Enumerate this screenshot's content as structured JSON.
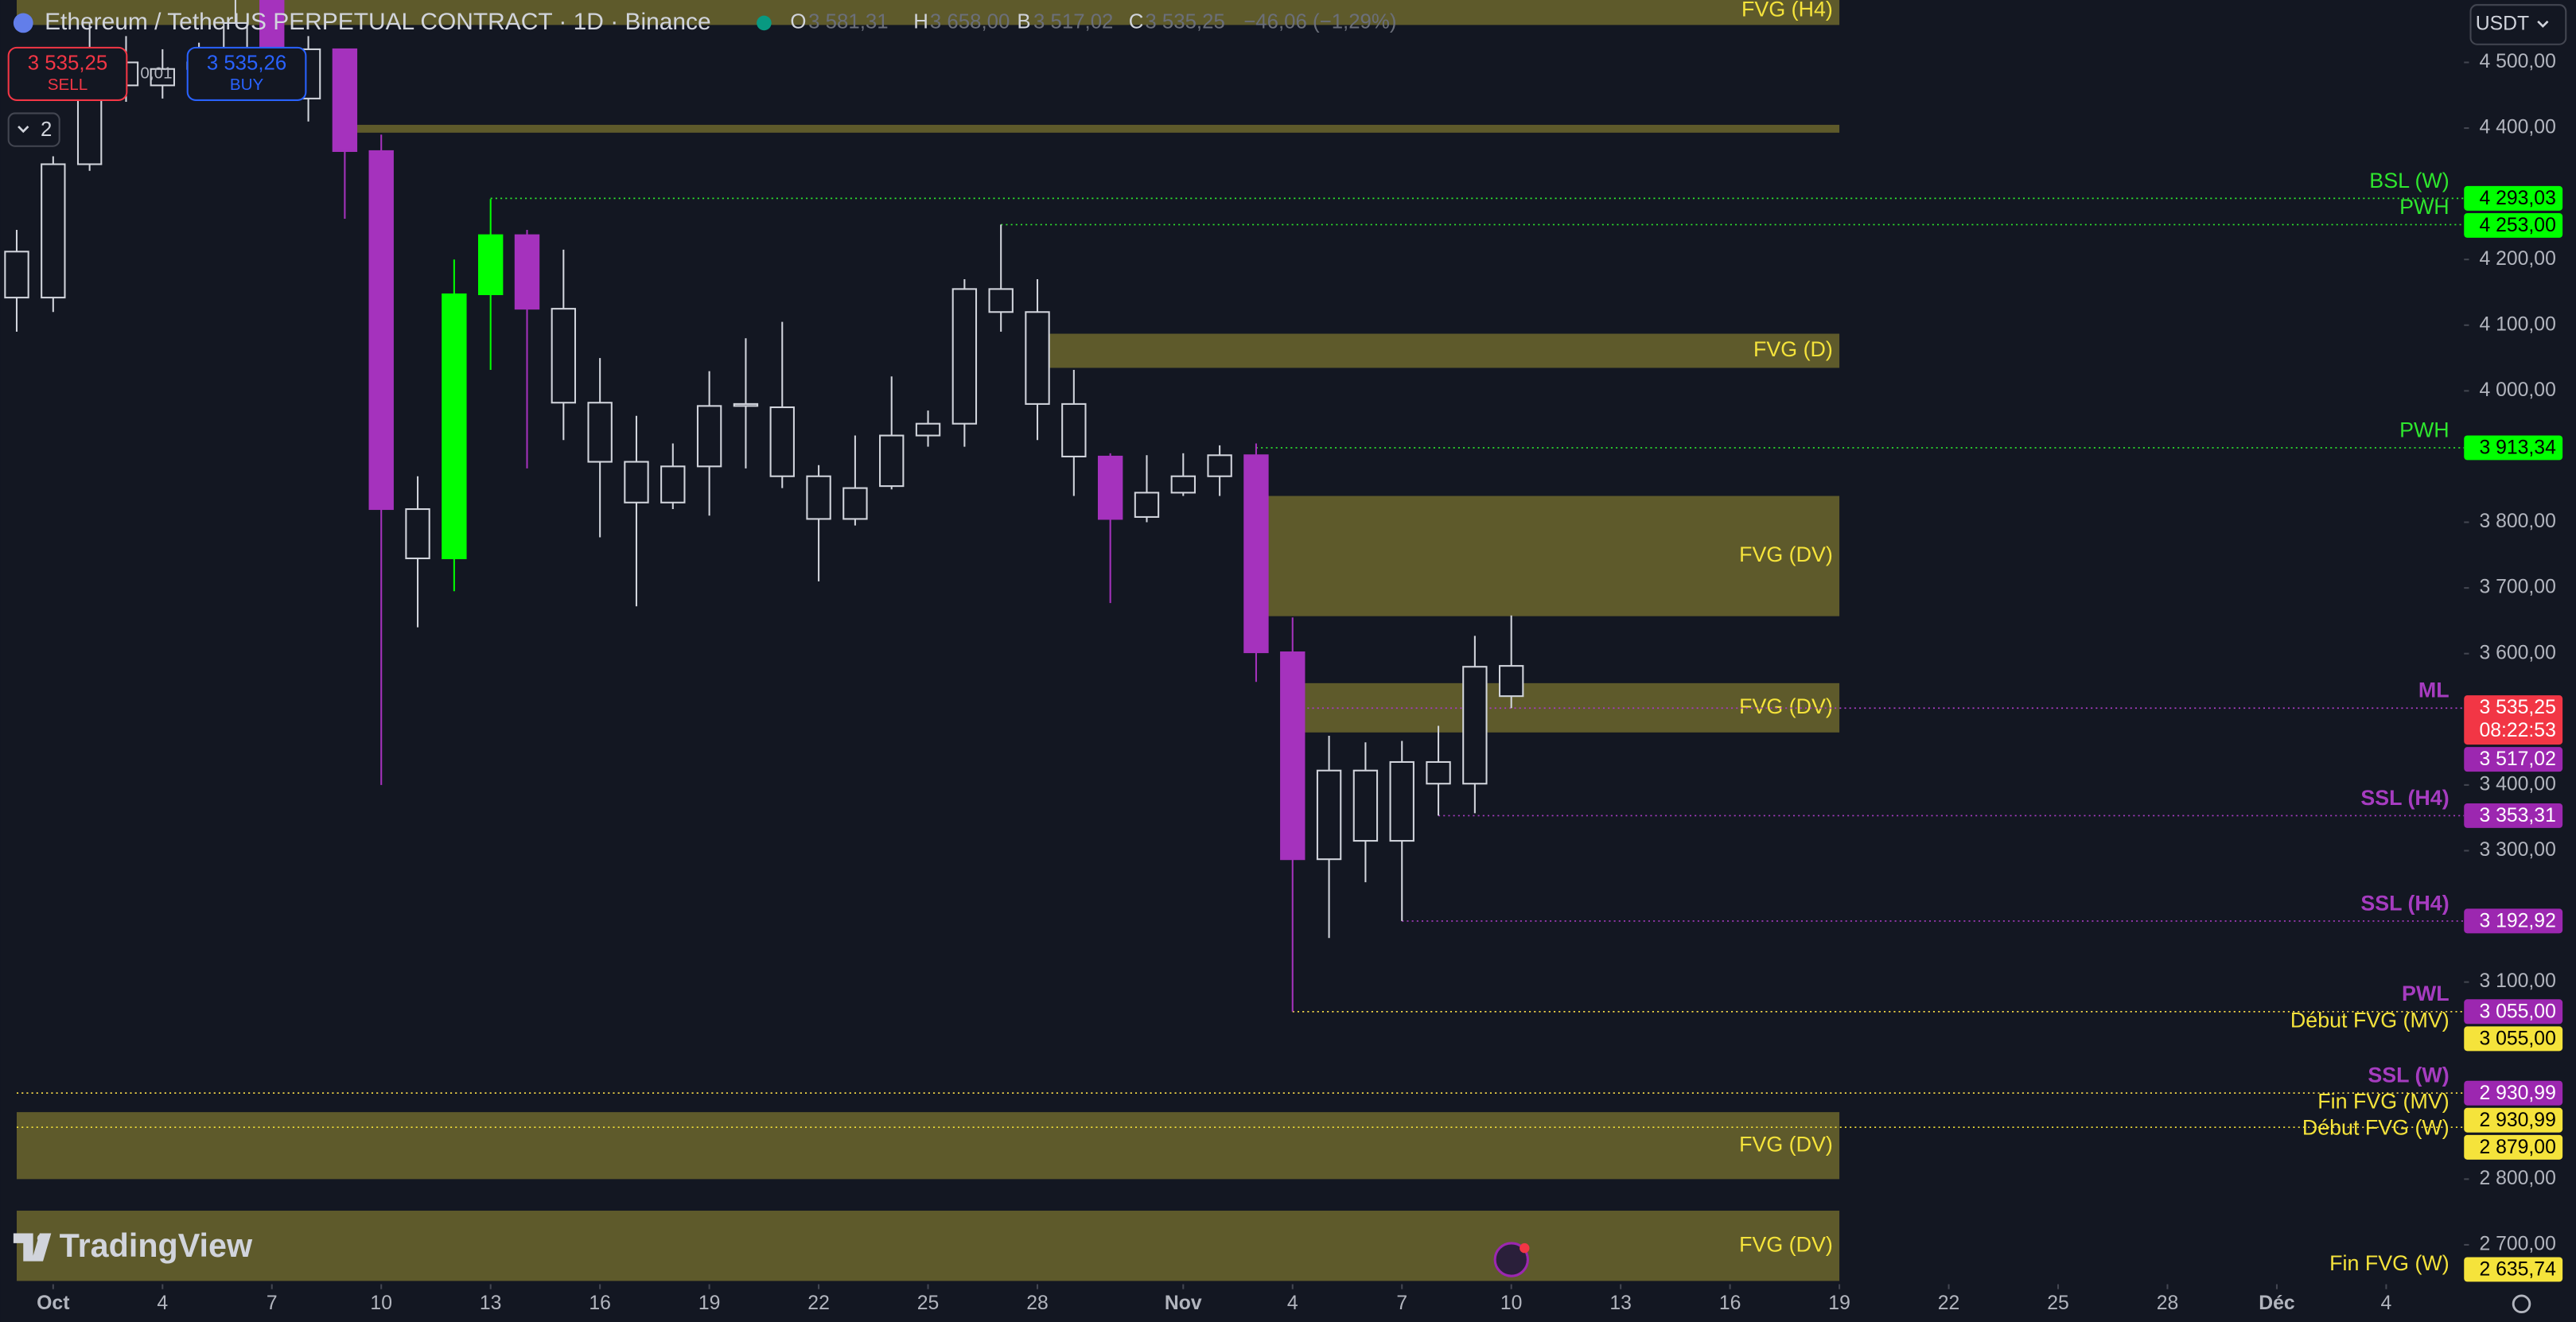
{
  "header": {
    "symbol": "Ethereum / TetherUS PERPETUAL CONTRACT · 1D · Binance",
    "o_label": "O",
    "o": "3 581,31",
    "h_label": "H",
    "h": "3 658,00",
    "l_label": "B",
    "l": "3 517,02",
    "c_label": "C",
    "c": "3 535,25",
    "change": "−46,06 (−1,29%)"
  },
  "trade": {
    "sell_price": "3 535,25",
    "sell": "SELL",
    "qty": "0,01",
    "buy_price": "3 535,26",
    "buy": "BUY",
    "indicators": "2"
  },
  "currency": "USDT",
  "logo": "TradingView",
  "chart_data": {
    "type": "candlestick",
    "x": [
      "09-30",
      "10-01",
      "10-02",
      "10-03",
      "10-04",
      "10-05",
      "10-06",
      "10-07",
      "10-08",
      "10-09",
      "10-10",
      "10-11",
      "10-12",
      "10-13",
      "10-14",
      "10-15",
      "10-16",
      "10-17",
      "10-18",
      "10-19",
      "10-20",
      "10-21",
      "10-22",
      "10-23",
      "10-24",
      "10-25",
      "10-26",
      "10-27",
      "10-28",
      "10-29",
      "10-30",
      "10-31",
      "11-01",
      "11-02",
      "11-03",
      "11-04",
      "11-05",
      "11-06",
      "11-07",
      "11-08",
      "11-09",
      "11-10"
    ],
    "open": [
      4142,
      4142,
      4345,
      4500,
      4465,
      4490,
      4500,
      4650,
      4445,
      4520,
      4365,
      3820,
      3745,
      4147,
      4237,
      4125,
      3982,
      3892,
      3830,
      3885,
      3977,
      3975,
      3870,
      3805,
      3855,
      3932,
      3950,
      4155,
      4120,
      3980,
      3900,
      3808,
      3845,
      3870,
      3902,
      3602,
      3287,
      3422,
      3315,
      3435,
      3402,
      3581.31
    ],
    "high": [
      4245,
      4357,
      4560,
      4540,
      4520,
      4530,
      4600,
      4700,
      4540,
      4520,
      4390,
      3870,
      4200,
      4292,
      4245,
      4215,
      4050,
      3962,
      3920,
      4030,
      4080,
      4105,
      3887,
      3932,
      4022,
      3970,
      4170,
      4253,
      4170,
      4032,
      3905,
      3902,
      3905,
      3917,
      3920,
      3655,
      3475,
      3465,
      3467,
      3490,
      3627,
      3658
    ],
    "low": [
      4090,
      4120,
      4335,
      4440,
      4445,
      4475,
      4480,
      4490,
      4410,
      4262,
      3400,
      3640,
      3695,
      4032,
      3882,
      3925,
      3777,
      3672,
      3820,
      3810,
      3882,
      3852,
      3710,
      3795,
      3850,
      3915,
      3915,
      4090,
      3925,
      3840,
      3677,
      3800,
      3840,
      3840,
      3557,
      3055,
      3167,
      3252,
      3192.92,
      3353.31,
      3357,
      3517.02
    ],
    "close": [
      4212,
      4345,
      4500,
      4465,
      4490,
      4500,
      4560,
      4520,
      4520,
      4365,
      3820,
      3745,
      4147,
      4237,
      4125,
      3982,
      3892,
      3830,
      3885,
      3977,
      3980,
      3870,
      3805,
      3852,
      3932,
      3950,
      4155,
      4120,
      3980,
      3900,
      3805,
      3845,
      3870,
      3902,
      3602,
      3287,
      3422,
      3315,
      3435,
      3402,
      3580,
      3535.25
    ],
    "colors": [
      "#d1d4dc",
      "#d1d4dc",
      "#d1d4dc",
      "#d1d4dc",
      "#d1d4dc",
      "#d1d4dc",
      "#d1d4dc",
      "#a532bd",
      "#d1d4dc",
      "#a532bd",
      "#a532bd",
      "#d1d4dc",
      "#00ff00",
      "#00ff00",
      "#a532bd",
      "#d1d4dc",
      "#d1d4dc",
      "#d1d4dc",
      "#d1d4dc",
      "#d1d4dc",
      "#d1d4dc",
      "#d1d4dc",
      "#d1d4dc",
      "#d1d4dc",
      "#d1d4dc",
      "#d1d4dc",
      "#d1d4dc",
      "#d1d4dc",
      "#d1d4dc",
      "#d1d4dc",
      "#a532bd",
      "#d1d4dc",
      "#d1d4dc",
      "#d1d4dc",
      "#a532bd",
      "#a532bd",
      "#d1d4dc",
      "#d1d4dc",
      "#d1d4dc",
      "#d1d4dc",
      "#d1d4dc",
      "#d1d4dc"
    ],
    "hollow_color": "#d1d4dc",
    "xlim": [
      "09-30",
      "12-06"
    ],
    "ylim": [
      2640,
      4595
    ],
    "yticks": [
      {
        "value": 4500,
        "label": "4 500,00"
      },
      {
        "value": 4400,
        "label": "4 400,00"
      },
      {
        "value": 4200,
        "label": "4 200,00"
      },
      {
        "value": 4100,
        "label": "4 100,00"
      },
      {
        "value": 4000,
        "label": "4 000,00"
      },
      {
        "value": 3800,
        "label": "3 800,00"
      },
      {
        "value": 3700,
        "label": "3 700,00"
      },
      {
        "value": 3600,
        "label": "3 600,00"
      },
      {
        "value": 3400,
        "label": "3 400,00"
      },
      {
        "value": 3300,
        "label": "3 300,00"
      },
      {
        "value": 3100,
        "label": "3 100,00"
      },
      {
        "value": 2800,
        "label": "2 800,00"
      },
      {
        "value": 2700,
        "label": "2 700,00"
      }
    ],
    "xticks": [
      {
        "value": "10-01",
        "label": "Oct"
      },
      {
        "value": "10-04",
        "label": "4"
      },
      {
        "value": "10-07",
        "label": "7"
      },
      {
        "value": "10-10",
        "label": "10"
      },
      {
        "value": "10-13",
        "label": "13"
      },
      {
        "value": "10-16",
        "label": "16"
      },
      {
        "value": "10-19",
        "label": "19"
      },
      {
        "value": "10-22",
        "label": "22"
      },
      {
        "value": "10-25",
        "label": "25"
      },
      {
        "value": "10-28",
        "label": "28"
      },
      {
        "value": "11-01",
        "label": "Nov"
      },
      {
        "value": "11-04",
        "label": "4"
      },
      {
        "value": "11-07",
        "label": "7"
      },
      {
        "value": "11-10",
        "label": "10"
      },
      {
        "value": "11-13",
        "label": "13"
      },
      {
        "value": "11-16",
        "label": "16"
      },
      {
        "value": "11-19",
        "label": "19"
      },
      {
        "value": "11-22",
        "label": "22"
      },
      {
        "value": "11-25",
        "label": "25"
      },
      {
        "value": "11-28",
        "label": "28"
      },
      {
        "value": "12-01",
        "label": "Déc"
      },
      {
        "value": "12-04",
        "label": "4"
      }
    ],
    "grid": false,
    "zones": [
      {
        "label": "FVG (H4)",
        "top": 4600,
        "bottom": 4557,
        "start": "09-30",
        "end": "11-19"
      },
      {
        "top": 4405,
        "bottom": 4393,
        "start": "10-09",
        "end": "11-19"
      },
      {
        "label": "FVG (D)",
        "top": 4087,
        "bottom": 4035,
        "start": "10-28",
        "end": "11-19"
      },
      {
        "label": "FVG (DV)",
        "top": 3840,
        "bottom": 3657,
        "start": "11-03",
        "end": "11-19"
      },
      {
        "label": "FVG (DV)",
        "top": 3555,
        "bottom": 3480,
        "start": "11-04",
        "end": "11-19"
      },
      {
        "label": "FVG (DV)",
        "top": 2902,
        "bottom": 2800,
        "start": "09-30",
        "end": "11-19"
      },
      {
        "label": "FVG (DV)",
        "top": 2752,
        "bottom": 2645,
        "start": "09-30",
        "end": "11-19"
      }
    ],
    "zone_color": "#5e5a2b",
    "zone_text_color": "#f5e33b",
    "levels": [
      {
        "name": "BSL (W)",
        "price": 4293.03,
        "price_label": "4 293,03",
        "start": "10-13",
        "color": "#2ee62e",
        "tag_color": "#00ff00",
        "tag_text_color": "#000000"
      },
      {
        "name": "PWH",
        "price": 4253,
        "price_label": "4 253,00",
        "start": "10-27",
        "color": "#2ee62e",
        "tag_color": "#00ff00",
        "tag_text_color": "#000000"
      },
      {
        "name": "PWH",
        "price": 3913.34,
        "price_label": "3 913,34",
        "start": "11-03",
        "color": "#2ee62e",
        "tag_color": "#00ff00",
        "tag_text_color": "#000000"
      },
      {
        "name": "ML",
        "price": 3517.02,
        "price_label": "3 517,02",
        "start": "11-04",
        "color": "#a63cc0",
        "tag_color": "#9c27b0",
        "tag_text_color": "#ffffff"
      },
      {
        "name": "SSL (H4)",
        "price": 3353.31,
        "price_label": "3 353,31",
        "start": "11-08",
        "color": "#a63cc0",
        "tag_color": "#9c27b0",
        "tag_text_color": "#ffffff"
      },
      {
        "name": "SSL (H4)",
        "price": 3192.92,
        "price_label": "3 192,92",
        "start": "11-07",
        "color": "#a63cc0",
        "tag_color": "#9c27b0",
        "tag_text_color": "#ffffff"
      },
      {
        "name": "PWL",
        "price": 3055,
        "price_label": "3 055,00",
        "start": "11-04",
        "color": "#a63cc0",
        "tag_color": "#9c27b0",
        "tag_text_color": "#ffffff"
      },
      {
        "name": "Début FVG (MV)",
        "price": 3055,
        "price_label": "3 055,00",
        "start": "11-04",
        "color": "#f5e33b",
        "tag_color": "#f5e33b",
        "tag_text_color": "#000000"
      },
      {
        "name": "SSL (W)",
        "price": 2930.99,
        "price_label": "2 930,99",
        "start": "09-30",
        "color": "#a63cc0",
        "tag_color": "#9c27b0",
        "tag_text_color": "#ffffff"
      },
      {
        "name": "Fin FVG (MV)",
        "price": 2930.99,
        "price_label": "2 930,99",
        "start": "09-30",
        "color": "#f5e33b",
        "tag_color": "#f5e33b",
        "tag_text_color": "#000000"
      },
      {
        "name": "Début FVG (W)",
        "price": 2879,
        "price_label": "2 879,00",
        "start": "09-30",
        "color": "#f5e33b",
        "tag_color": "#f5e33b",
        "tag_text_color": "#000000"
      },
      {
        "name": "Fin FVG (W)",
        "price": 2635.74,
        "price_label": "2 635,74",
        "start": "09-30",
        "color": "#f5e33b",
        "tag_color": "#f5e33b",
        "tag_text_color": "#000000"
      }
    ],
    "last_price": 3535.25,
    "last_price_label": "3 535,25",
    "countdown": "08:22:53",
    "last_color": "#f23645"
  }
}
